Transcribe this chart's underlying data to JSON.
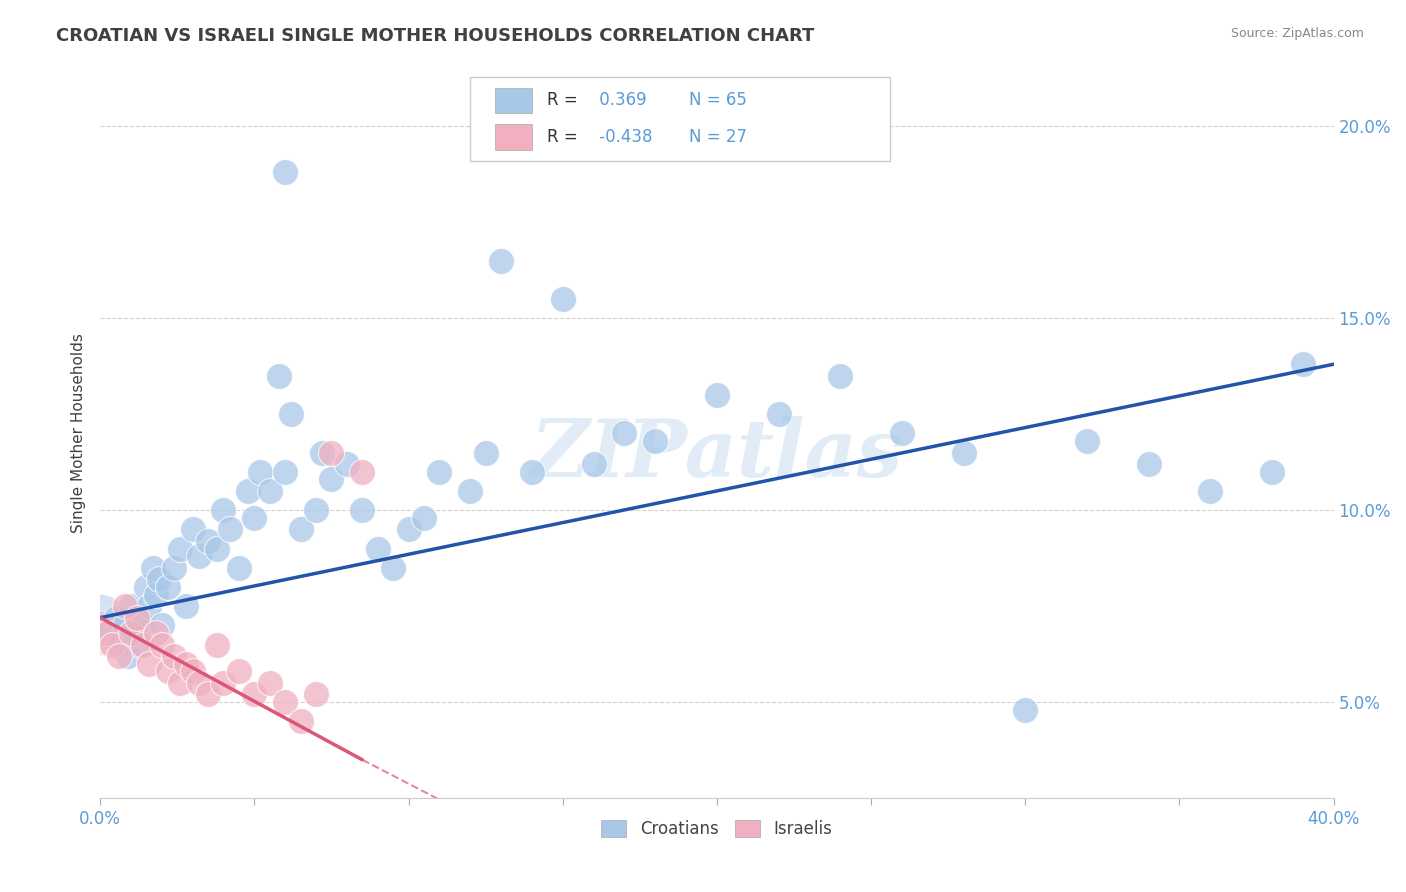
{
  "title": "CROATIAN VS ISRAELI SINGLE MOTHER HOUSEHOLDS CORRELATION CHART",
  "source": "Source: ZipAtlas.com",
  "ylabel": "Single Mother Households",
  "xmin": 0.0,
  "xmax": 40.0,
  "ymin": 2.5,
  "ymax": 21.5,
  "yticks": [
    5.0,
    10.0,
    15.0,
    20.0
  ],
  "xticks": [
    0.0,
    5.0,
    10.0,
    15.0,
    20.0,
    25.0,
    30.0,
    35.0,
    40.0
  ],
  "croatian_R": 0.369,
  "croatian_N": 65,
  "israeli_R": -0.438,
  "israeli_N": 27,
  "blue_color": "#A8C8E8",
  "pink_color": "#F0B0C0",
  "blue_line_color": "#2255AA",
  "pink_line_color": "#DD5577",
  "watermark": "ZIPatlas",
  "background_color": "#FFFFFF",
  "grid_color": "#CCCCCC",
  "title_color": "#404040",
  "axis_label_color": "#5B9BD5",
  "blue_dots": [
    [
      0.3,
      6.8
    ],
    [
      0.5,
      7.2
    ],
    [
      0.6,
      6.5
    ],
    [
      0.8,
      7.0
    ],
    [
      0.9,
      6.2
    ],
    [
      1.0,
      7.5
    ],
    [
      1.1,
      6.8
    ],
    [
      1.2,
      7.2
    ],
    [
      1.3,
      6.5
    ],
    [
      1.4,
      7.0
    ],
    [
      1.5,
      8.0
    ],
    [
      1.6,
      7.5
    ],
    [
      1.7,
      8.5
    ],
    [
      1.8,
      7.8
    ],
    [
      1.9,
      8.2
    ],
    [
      2.0,
      7.0
    ],
    [
      2.2,
      8.0
    ],
    [
      2.4,
      8.5
    ],
    [
      2.6,
      9.0
    ],
    [
      2.8,
      7.5
    ],
    [
      3.0,
      9.5
    ],
    [
      3.2,
      8.8
    ],
    [
      3.5,
      9.2
    ],
    [
      3.8,
      9.0
    ],
    [
      4.0,
      10.0
    ],
    [
      4.2,
      9.5
    ],
    [
      4.5,
      8.5
    ],
    [
      4.8,
      10.5
    ],
    [
      5.0,
      9.8
    ],
    [
      5.2,
      11.0
    ],
    [
      5.5,
      10.5
    ],
    [
      5.8,
      13.5
    ],
    [
      6.0,
      11.0
    ],
    [
      6.2,
      12.5
    ],
    [
      6.5,
      9.5
    ],
    [
      7.0,
      10.0
    ],
    [
      7.2,
      11.5
    ],
    [
      7.5,
      10.8
    ],
    [
      8.0,
      11.2
    ],
    [
      8.5,
      10.0
    ],
    [
      9.0,
      9.0
    ],
    [
      9.5,
      8.5
    ],
    [
      10.0,
      9.5
    ],
    [
      10.5,
      9.8
    ],
    [
      11.0,
      11.0
    ],
    [
      12.0,
      10.5
    ],
    [
      12.5,
      11.5
    ],
    [
      13.0,
      16.5
    ],
    [
      14.0,
      11.0
    ],
    [
      15.0,
      15.5
    ],
    [
      16.0,
      11.2
    ],
    [
      17.0,
      12.0
    ],
    [
      18.0,
      11.8
    ],
    [
      20.0,
      13.0
    ],
    [
      22.0,
      12.5
    ],
    [
      24.0,
      13.5
    ],
    [
      26.0,
      12.0
    ],
    [
      28.0,
      11.5
    ],
    [
      30.0,
      4.8
    ],
    [
      32.0,
      11.8
    ],
    [
      34.0,
      11.2
    ],
    [
      36.0,
      10.5
    ],
    [
      38.0,
      11.0
    ],
    [
      39.0,
      13.8
    ],
    [
      6.0,
      18.8
    ]
  ],
  "pink_dots": [
    [
      0.2,
      6.8
    ],
    [
      0.4,
      6.5
    ],
    [
      0.6,
      6.2
    ],
    [
      0.8,
      7.5
    ],
    [
      1.0,
      6.8
    ],
    [
      1.2,
      7.2
    ],
    [
      1.4,
      6.5
    ],
    [
      1.6,
      6.0
    ],
    [
      1.8,
      6.8
    ],
    [
      2.0,
      6.5
    ],
    [
      2.2,
      5.8
    ],
    [
      2.4,
      6.2
    ],
    [
      2.6,
      5.5
    ],
    [
      2.8,
      6.0
    ],
    [
      3.0,
      5.8
    ],
    [
      3.2,
      5.5
    ],
    [
      3.5,
      5.2
    ],
    [
      3.8,
      6.5
    ],
    [
      4.0,
      5.5
    ],
    [
      4.5,
      5.8
    ],
    [
      5.0,
      5.2
    ],
    [
      5.5,
      5.5
    ],
    [
      6.0,
      5.0
    ],
    [
      6.5,
      4.5
    ],
    [
      7.0,
      5.2
    ],
    [
      7.5,
      11.5
    ],
    [
      8.5,
      11.0
    ]
  ],
  "blue_line": [
    [
      0.0,
      7.2
    ],
    [
      40.0,
      13.8
    ]
  ],
  "pink_line_solid": [
    [
      0.0,
      7.2
    ],
    [
      8.5,
      3.5
    ]
  ],
  "pink_line_dashed": [
    [
      8.5,
      3.5
    ],
    [
      15.0,
      0.8
    ]
  ]
}
